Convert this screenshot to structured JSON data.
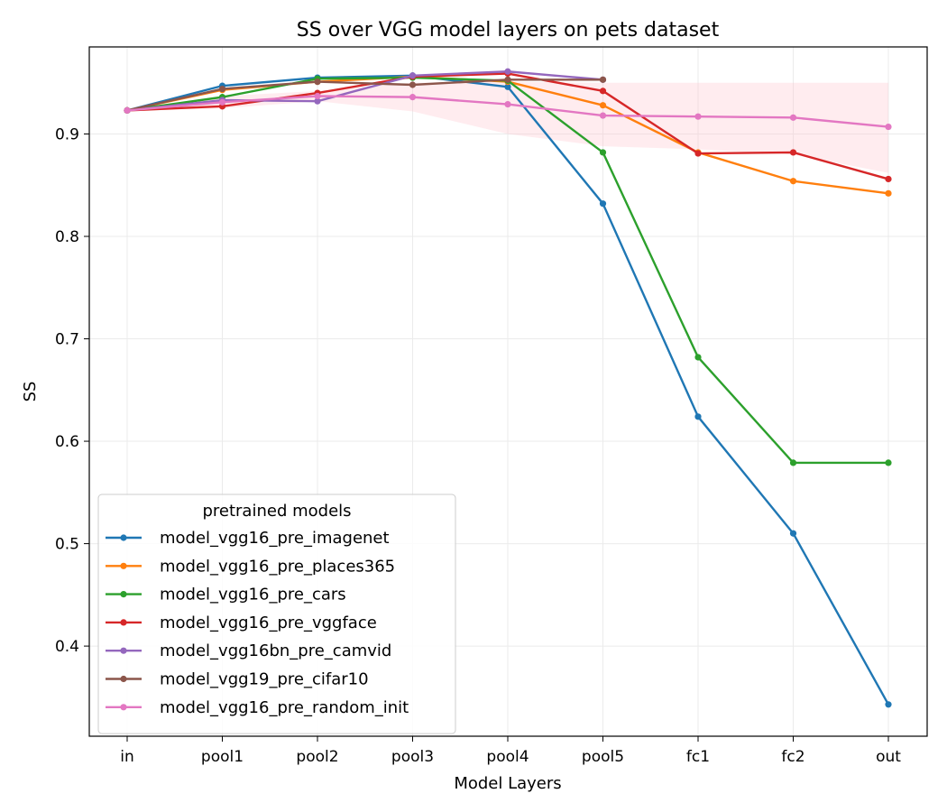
{
  "chart_data": {
    "type": "line",
    "title": "SS over VGG model layers on pets dataset",
    "xlabel": "Model Layers",
    "ylabel": "SS",
    "categories": [
      "in",
      "pool1",
      "pool2",
      "pool3",
      "pool4",
      "pool5",
      "fc1",
      "fc2",
      "out"
    ],
    "ylim": [
      0.312,
      0.985
    ],
    "yticks": [
      0.4,
      0.5,
      0.6,
      0.7,
      0.8,
      0.9
    ],
    "ytick_labels": [
      "0.4",
      "0.5",
      "0.6",
      "0.7",
      "0.8",
      "0.9"
    ],
    "grid": true,
    "legend_title": "pretrained models",
    "legend_position": "lower-left",
    "series": [
      {
        "name": "model_vgg16_pre_imagenet",
        "color": "#1f77b4",
        "values": [
          0.923,
          0.947,
          0.955,
          0.957,
          0.946,
          0.832,
          0.624,
          0.51,
          0.343
        ]
      },
      {
        "name": "model_vgg16_pre_places365",
        "color": "#ff7f0e",
        "values": [
          0.923,
          0.943,
          0.951,
          0.956,
          0.951,
          0.928,
          0.882,
          0.854,
          0.842
        ]
      },
      {
        "name": "model_vgg16_pre_cars",
        "color": "#2ca02c",
        "values": [
          0.923,
          0.936,
          0.954,
          0.955,
          0.952,
          0.882,
          0.682,
          0.579,
          0.579
        ]
      },
      {
        "name": "model_vgg16_pre_vggface",
        "color": "#d62728",
        "values": [
          0.923,
          0.927,
          0.94,
          0.956,
          0.959,
          0.942,
          0.881,
          0.882,
          0.856
        ]
      },
      {
        "name": "model_vgg16bn_pre_camvid",
        "color": "#9467bd",
        "values": [
          0.923,
          0.933,
          0.932,
          0.957,
          0.961,
          0.953,
          null,
          null,
          null
        ]
      },
      {
        "name": "model_vgg19_pre_cifar10",
        "color": "#8c564b",
        "values": [
          0.923,
          0.944,
          0.951,
          0.948,
          0.953,
          0.953,
          null,
          null,
          null
        ]
      },
      {
        "name": "model_vgg16_pre_random_init",
        "color": "#e377c2",
        "values": [
          0.923,
          0.931,
          0.937,
          0.936,
          0.929,
          0.918,
          0.917,
          0.916,
          0.907
        ]
      }
    ],
    "band": {
      "color": "#ffc0cb",
      "upper": [
        0.923,
        0.937,
        0.942,
        0.95,
        0.951,
        0.95,
        0.95,
        0.95,
        0.95
      ],
      "lower": [
        0.923,
        0.925,
        0.932,
        0.922,
        0.9,
        0.888,
        0.885,
        0.88,
        0.862
      ]
    }
  }
}
